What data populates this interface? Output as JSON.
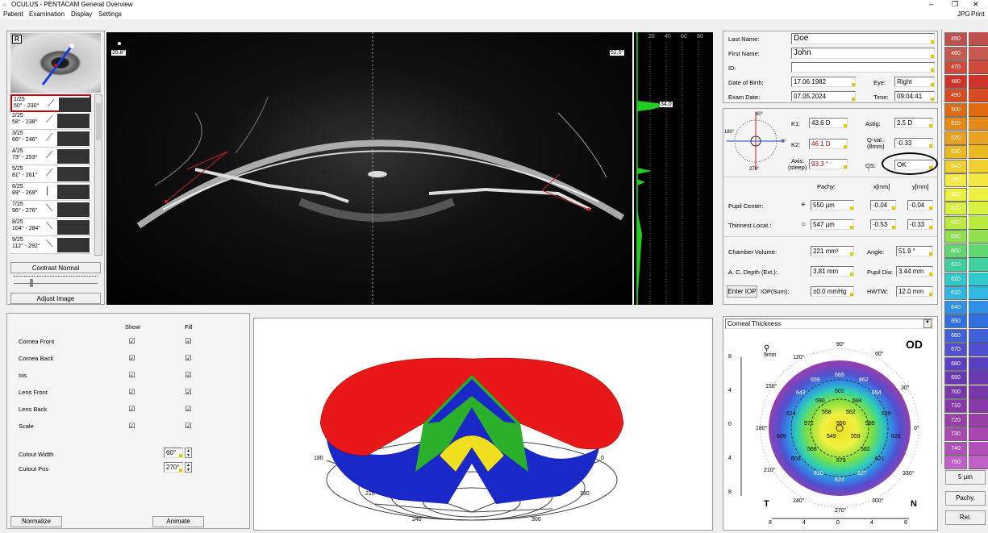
{
  "window": {
    "title": "OCULUS - PENTACAM General Overview",
    "menu": [
      "Patient",
      "Examination",
      "Display",
      "Settings"
    ],
    "right_menu": [
      "JPG",
      "Print"
    ],
    "min": "–",
    "restore": "❐",
    "close": "✕"
  },
  "eye_panel": {
    "eye_badge": "R",
    "contrast_label": "Contrast Normal",
    "adjust_label": "Adjust Image",
    "scans": [
      {
        "line1": "1/25",
        "line2": "50° - 230°"
      },
      {
        "line1": "2/25",
        "line2": "58° - 238°"
      },
      {
        "line1": "3/25",
        "line2": "66° - 246°"
      },
      {
        "line1": "4/25",
        "line2": "73° - 253°"
      },
      {
        "line1": "5/25",
        "line2": "81° - 261°"
      },
      {
        "line1": "6/25",
        "line2": "89° - 269°"
      },
      {
        "line1": "7/25",
        "line2": "96° - 276°"
      },
      {
        "line1": "8/25",
        "line2": "104° - 284°"
      },
      {
        "line1": "9/25",
        "line2": "112° - 292°"
      }
    ]
  },
  "scheimpflug": {
    "left_angle": "35.8°",
    "right_angle": "52.5°",
    "density_ticks": [
      "20",
      "40",
      "60",
      "80"
    ],
    "density_value": "34.0"
  },
  "patient": {
    "last_name_label": "Last Name:",
    "last_name": "Doe",
    "first_name_label": "First Name:",
    "first_name": "John",
    "id_label": "ID:",
    "id": "",
    "dob_label": "Date of Birth:",
    "dob": "17.06.1982",
    "eye_label": "Eye:",
    "eye": "Right",
    "exam_date_label": "Exam Date:",
    "exam_date": "07.05.2024",
    "time_label": "Time:",
    "time": "09:04:41"
  },
  "kerato": {
    "k1_label": "K1:",
    "k1": "43.6 D",
    "k2_label": "K2:",
    "k2": "46.1 D",
    "axis_label": "Axis:",
    "axis_sub": "(steep)",
    "axis": "93.3 °",
    "astig_label": "Astig:",
    "astig": "2.5 D",
    "qval_label": "Q-val.:",
    "qval_sub": "(8mm)",
    "qval": "-0.33",
    "qs_label": "QS:",
    "qs": "OK",
    "deg90": "90°",
    "deg270": "270°",
    "deg0": "0°",
    "deg180": "180°"
  },
  "pachy": {
    "pachy_header": "Pachy:",
    "x_header": "x[mm]",
    "y_header": "y[mm]",
    "pupil_label": "Pupil Center:",
    "pupil_pachy": "550 µm",
    "pupil_x": "-0.04",
    "pupil_y": "-0.04",
    "thin_label": "Thinnest Locat.:",
    "thin_pachy": "547 µm",
    "thin_x": "-0.53",
    "thin_y": "-0.33"
  },
  "chamber": {
    "vol_label": "Chamber Volume:",
    "vol": "221 mm³",
    "angle_label": "Angle:",
    "angle": "51.9 °",
    "acd_label": "A. C. Depth (Ext.):",
    "acd": "3.81 mm",
    "pupil_dia_label": "Pupil Dia:",
    "pupil_dia": "3.44 mm",
    "iop_button": "Enter IOP",
    "iop_label": "IOP(Sum):",
    "iop": "±0.0 mmHg",
    "hwtw_label": "HWTW:",
    "hwtw": "12.0 mm"
  },
  "view3d": {
    "rows": [
      {
        "label": "Cornea Front",
        "show": true,
        "fill": true
      },
      {
        "label": "Cornea Back",
        "show": true,
        "fill": true
      },
      {
        "label": "Iris",
        "show": true,
        "fill": true
      },
      {
        "label": "Lens Front",
        "show": true,
        "fill": true
      },
      {
        "label": "Lens Back",
        "show": true,
        "fill": true
      },
      {
        "label": "Scale",
        "show": true,
        "fill": true
      }
    ],
    "show_header": "Show",
    "fill_header": "Fill",
    "cutout_width_label": "Cutout Width",
    "cutout_width": "60°",
    "cutout_pos_label": "Cutout Pos",
    "cutout_pos": "270°",
    "normalize": "Normalize",
    "animate": "Animate",
    "axis_labels": [
      "180",
      "210",
      "240",
      "270",
      "300",
      "330",
      "0"
    ]
  },
  "map": {
    "dropdown": "Corneal Thickness",
    "eye": "OD",
    "zoom": "9mm",
    "temporal": "T",
    "nasal": "N",
    "y_ticks": [
      "8",
      "4",
      "0",
      "4",
      "8"
    ],
    "x_ticks": [
      "8",
      "4",
      "0",
      "4",
      "8"
    ],
    "ring_labels": [
      "90°",
      "60°",
      "30°",
      "0°",
      "330°",
      "300°",
      "270°",
      "240°",
      "210°",
      "180°",
      "150°",
      "120°"
    ],
    "values": [
      "669",
      "659",
      "662",
      "643",
      "602",
      "654",
      "590",
      "594",
      "624",
      "558",
      "562",
      "639",
      "572",
      "550",
      "585",
      "609",
      "549",
      "559",
      "628",
      "568",
      "582",
      "603",
      "579",
      "621",
      "610",
      "627",
      "624"
    ]
  },
  "scale": {
    "values": [
      "450",
      "460",
      "470",
      "480",
      "490",
      "500",
      "510",
      "520",
      "530",
      "540",
      "550",
      "560",
      "570",
      "580",
      "590",
      "600",
      "610",
      "620",
      "630",
      "640",
      "650",
      "660",
      "670",
      "680",
      "690",
      "700",
      "710",
      "720",
      "730",
      "740",
      "750"
    ],
    "colors": [
      "#c0504d",
      "#c65a50",
      "#cf4a3a",
      "#d0332a",
      "#d84a20",
      "#e06a10",
      "#e58a18",
      "#eaa020",
      "#ecb820",
      "#f0d030",
      "#f5e840",
      "#eef040",
      "#d8f040",
      "#b8ea40",
      "#90e050",
      "#60d870",
      "#40d0a0",
      "#30c8c8",
      "#30b8e0",
      "#3090e8",
      "#3070e0",
      "#4060d8",
      "#5050d0",
      "#5a40c0",
      "#6a38b0",
      "#7838a8",
      "#8838a8",
      "#9840a8",
      "#a848b0",
      "#b050b8",
      "#c060c8"
    ],
    "step": "5 µm",
    "pachy_btn": "Pachy.",
    "rel_btn": "Rel."
  }
}
